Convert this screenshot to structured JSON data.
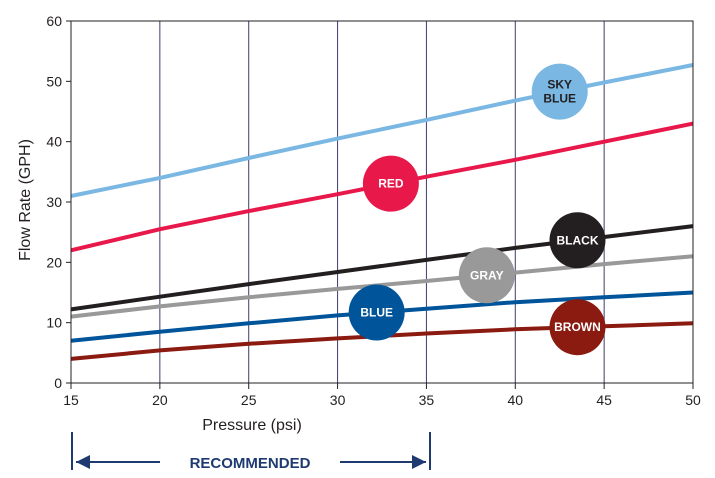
{
  "chart_data": {
    "type": "line",
    "title": "",
    "xlabel": "Pressure (psi)",
    "ylabel": "Flow Rate (GPH)",
    "xlim": [
      15,
      50
    ],
    "ylim": [
      0,
      60
    ],
    "x_ticks": [
      "15",
      "20",
      "25",
      "30",
      "35",
      "40",
      "45",
      "50"
    ],
    "y_ticks": [
      "0",
      "10",
      "20",
      "30",
      "40",
      "50",
      "60"
    ],
    "grid": "vertical",
    "x": [
      15,
      20,
      25,
      30,
      35,
      40,
      45,
      50
    ],
    "series": [
      {
        "name": "SKY BLUE",
        "label_lines": [
          "SKY",
          "BLUE"
        ],
        "color": "#7ab8e3",
        "text_color": "#231f20",
        "values": [
          31,
          34,
          37.3,
          40.5,
          43.6,
          46.8,
          49.8,
          52.7
        ],
        "badge_x": 42.5
      },
      {
        "name": "RED",
        "label_lines": [
          "RED"
        ],
        "color": "#e8194a",
        "text_color": "#ffffff",
        "values": [
          22,
          25.5,
          28.5,
          31.3,
          34.2,
          37,
          40,
          43
        ],
        "badge_x": 33
      },
      {
        "name": "BLACK",
        "label_lines": [
          "BLACK"
        ],
        "color": "#231f20",
        "text_color": "#ffffff",
        "values": [
          12.2,
          14.3,
          16.4,
          18.4,
          20.4,
          22.4,
          24.2,
          26
        ],
        "badge_x": 43.5
      },
      {
        "name": "GRAY",
        "label_lines": [
          "GRAY"
        ],
        "color": "#999999",
        "text_color": "#ffffff",
        "values": [
          11,
          12.7,
          14.2,
          15.6,
          16.9,
          18.3,
          19.7,
          21
        ],
        "badge_x": 38.4
      },
      {
        "name": "BLUE",
        "label_lines": [
          "BLUE"
        ],
        "color": "#00549a",
        "text_color": "#ffffff",
        "values": [
          7,
          8.5,
          9.9,
          11.2,
          12.3,
          13.4,
          14.2,
          15
        ],
        "badge_x": 32.2
      },
      {
        "name": "BROWN",
        "label_lines": [
          "BROWN"
        ],
        "color": "#8b1a10",
        "text_color": "#ffffff",
        "values": [
          4,
          5.4,
          6.5,
          7.4,
          8.2,
          8.9,
          9.4,
          9.9
        ],
        "badge_x": 43.5
      }
    ],
    "recommended": {
      "label": "RECOMMENDED",
      "from": 15,
      "to": 35,
      "color": "#1f3a70"
    }
  }
}
